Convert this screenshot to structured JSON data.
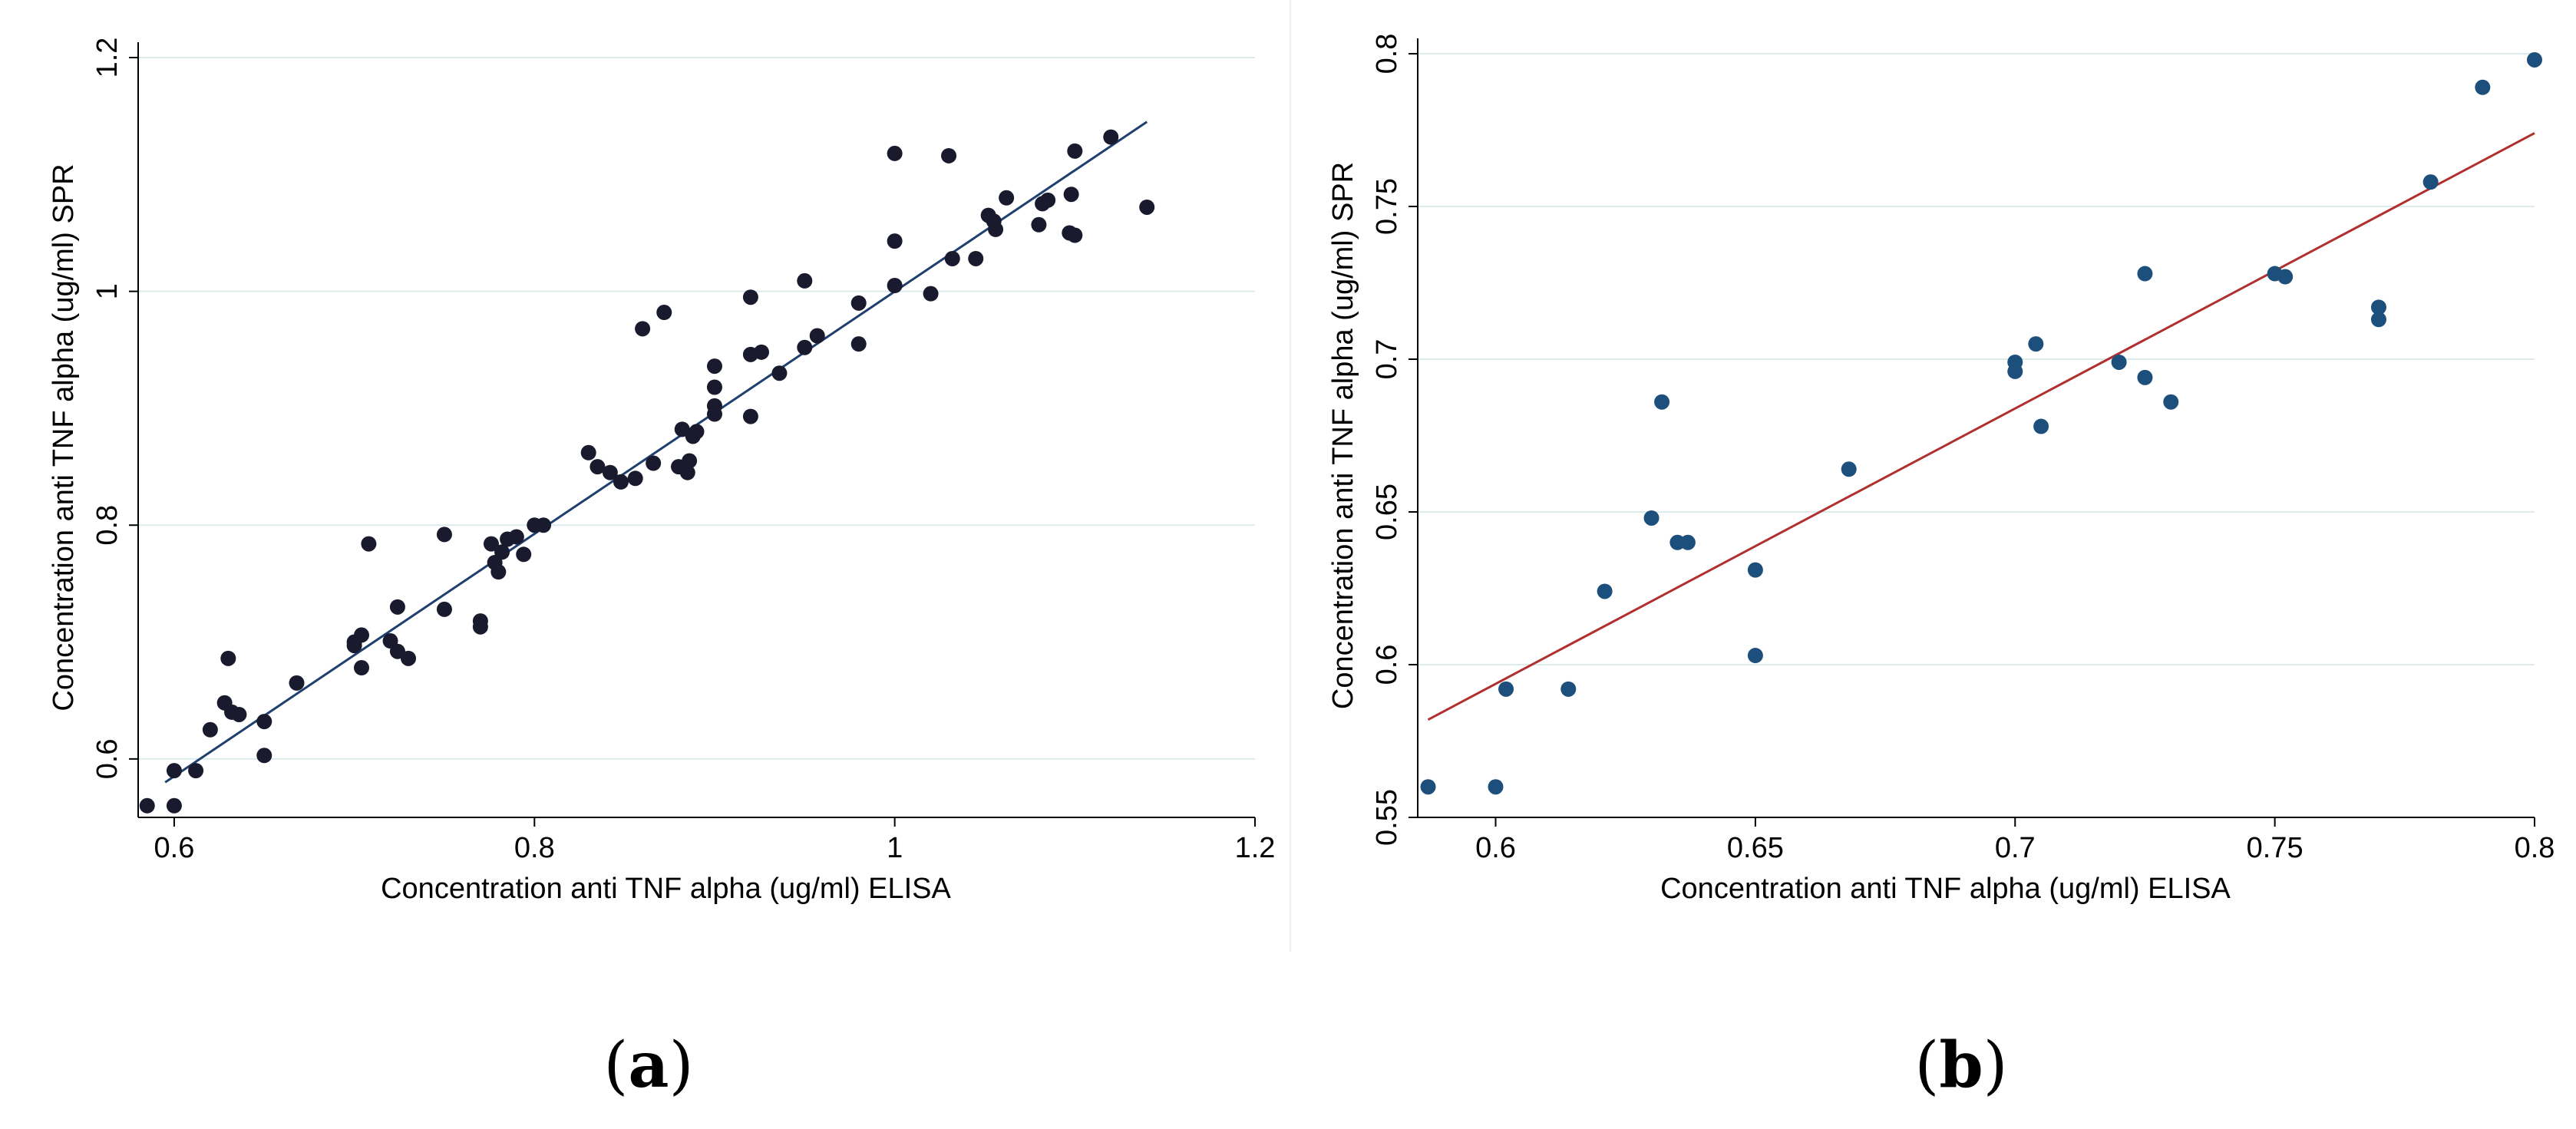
{
  "chart_data": [
    {
      "type": "scatter",
      "panel": "a",
      "caption_label": "a",
      "xlabel": "Concentration anti TNF alpha (ug/ml) ELISA",
      "ylabel": "Concentration anti TNF alpha (ug/ml) SPR",
      "xlim": [
        0.58,
        1.2
      ],
      "ylim": [
        0.55,
        1.2
      ],
      "xticks": [
        0.6,
        0.8,
        1,
        1.2
      ],
      "yticks": [
        0.6,
        0.8,
        1,
        1.2
      ],
      "grid": "horizontal",
      "point_color": "#1a1a2e",
      "line_color": "#1f3f6e",
      "fit_line": {
        "x": [
          0.595,
          1.14
        ],
        "y": [
          0.58,
          1.145
        ]
      },
      "points": [
        [
          0.585,
          0.56
        ],
        [
          0.6,
          0.56
        ],
        [
          0.6,
          0.59
        ],
        [
          0.612,
          0.59
        ],
        [
          0.62,
          0.625
        ],
        [
          0.628,
          0.648
        ],
        [
          0.63,
          0.686
        ],
        [
          0.632,
          0.64
        ],
        [
          0.636,
          0.638
        ],
        [
          0.65,
          0.603
        ],
        [
          0.65,
          0.632
        ],
        [
          0.668,
          0.665
        ],
        [
          0.7,
          0.7
        ],
        [
          0.7,
          0.697
        ],
        [
          0.704,
          0.706
        ],
        [
          0.704,
          0.678
        ],
        [
          0.708,
          0.784
        ],
        [
          0.72,
          0.701
        ],
        [
          0.724,
          0.73
        ],
        [
          0.724,
          0.692
        ],
        [
          0.73,
          0.686
        ],
        [
          0.75,
          0.792
        ],
        [
          0.75,
          0.728
        ],
        [
          0.77,
          0.713
        ],
        [
          0.77,
          0.718
        ],
        [
          0.776,
          0.784
        ],
        [
          0.778,
          0.768
        ],
        [
          0.78,
          0.76
        ],
        [
          0.782,
          0.777
        ],
        [
          0.785,
          0.788
        ],
        [
          0.79,
          0.79
        ],
        [
          0.794,
          0.775
        ],
        [
          0.8,
          0.8
        ],
        [
          0.805,
          0.8
        ],
        [
          0.83,
          0.862
        ],
        [
          0.835,
          0.85
        ],
        [
          0.842,
          0.845
        ],
        [
          0.848,
          0.837
        ],
        [
          0.856,
          0.84
        ],
        [
          0.86,
          0.968
        ],
        [
          0.866,
          0.853
        ],
        [
          0.872,
          0.982
        ],
        [
          0.88,
          0.85
        ],
        [
          0.882,
          0.882
        ],
        [
          0.885,
          0.845
        ],
        [
          0.886,
          0.855
        ],
        [
          0.888,
          0.876
        ],
        [
          0.89,
          0.88
        ],
        [
          0.9,
          0.895
        ],
        [
          0.9,
          0.918
        ],
        [
          0.9,
          0.936
        ],
        [
          0.9,
          0.902
        ],
        [
          0.92,
          0.995
        ],
        [
          0.92,
          0.946
        ],
        [
          0.92,
          0.893
        ],
        [
          0.926,
          0.948
        ],
        [
          0.936,
          0.93
        ],
        [
          0.95,
          1.009
        ],
        [
          0.95,
          0.952
        ],
        [
          0.957,
          0.962
        ],
        [
          0.98,
          0.99
        ],
        [
          0.98,
          0.955
        ],
        [
          1.0,
          1.118
        ],
        [
          1.0,
          1.005
        ],
        [
          1.0,
          1.043
        ],
        [
          1.02,
          0.998
        ],
        [
          1.03,
          1.116
        ],
        [
          1.032,
          1.028
        ],
        [
          1.045,
          1.028
        ],
        [
          1.052,
          1.065
        ],
        [
          1.055,
          1.06
        ],
        [
          1.056,
          1.053
        ],
        [
          1.062,
          1.08
        ],
        [
          1.08,
          1.057
        ],
        [
          1.082,
          1.075
        ],
        [
          1.085,
          1.078
        ],
        [
          1.097,
          1.05
        ],
        [
          1.098,
          1.083
        ],
        [
          1.1,
          1.12
        ],
        [
          1.1,
          1.048
        ],
        [
          1.12,
          1.132
        ],
        [
          1.14,
          1.072
        ]
      ]
    },
    {
      "type": "scatter",
      "panel": "b",
      "caption_label": "b",
      "xlabel": "Concentration anti TNF alpha (ug/ml) ELISA",
      "ylabel": "Concentration anti TNF alpha (ug/ml) SPR",
      "xlim": [
        0.585,
        0.8
      ],
      "ylim": [
        0.55,
        0.8
      ],
      "xticks": [
        0.6,
        0.65,
        0.7,
        0.75,
        0.8
      ],
      "xtick_labels": [
        "0.6",
        "0.65",
        "0.7",
        "0.75",
        "0.8"
      ],
      "yticks": [
        0.55,
        0.6,
        0.65,
        0.7,
        0.75,
        0.8
      ],
      "ytick_labels": [
        "0.55",
        "0.6",
        "0.65",
        "0.7",
        "0.75",
        "0.8"
      ],
      "grid": "horizontal",
      "point_color": "#1c4f7c",
      "line_color": "#b03030",
      "fit_line": {
        "x": [
          0.587,
          0.8
        ],
        "y": [
          0.582,
          0.774
        ]
      },
      "points": [
        [
          0.587,
          0.56
        ],
        [
          0.6,
          0.56
        ],
        [
          0.602,
          0.592
        ],
        [
          0.614,
          0.592
        ],
        [
          0.621,
          0.624
        ],
        [
          0.63,
          0.648
        ],
        [
          0.632,
          0.686
        ],
        [
          0.635,
          0.64
        ],
        [
          0.637,
          0.64
        ],
        [
          0.65,
          0.603
        ],
        [
          0.65,
          0.631
        ],
        [
          0.668,
          0.664
        ],
        [
          0.7,
          0.699
        ],
        [
          0.7,
          0.696
        ],
        [
          0.704,
          0.705
        ],
        [
          0.705,
          0.678
        ],
        [
          0.72,
          0.699
        ],
        [
          0.725,
          0.728
        ],
        [
          0.725,
          0.694
        ],
        [
          0.73,
          0.686
        ],
        [
          0.75,
          0.728
        ],
        [
          0.752,
          0.727
        ],
        [
          0.77,
          0.717
        ],
        [
          0.77,
          0.713
        ],
        [
          0.78,
          0.758
        ],
        [
          0.79,
          0.789
        ],
        [
          0.8,
          0.798
        ]
      ]
    }
  ]
}
